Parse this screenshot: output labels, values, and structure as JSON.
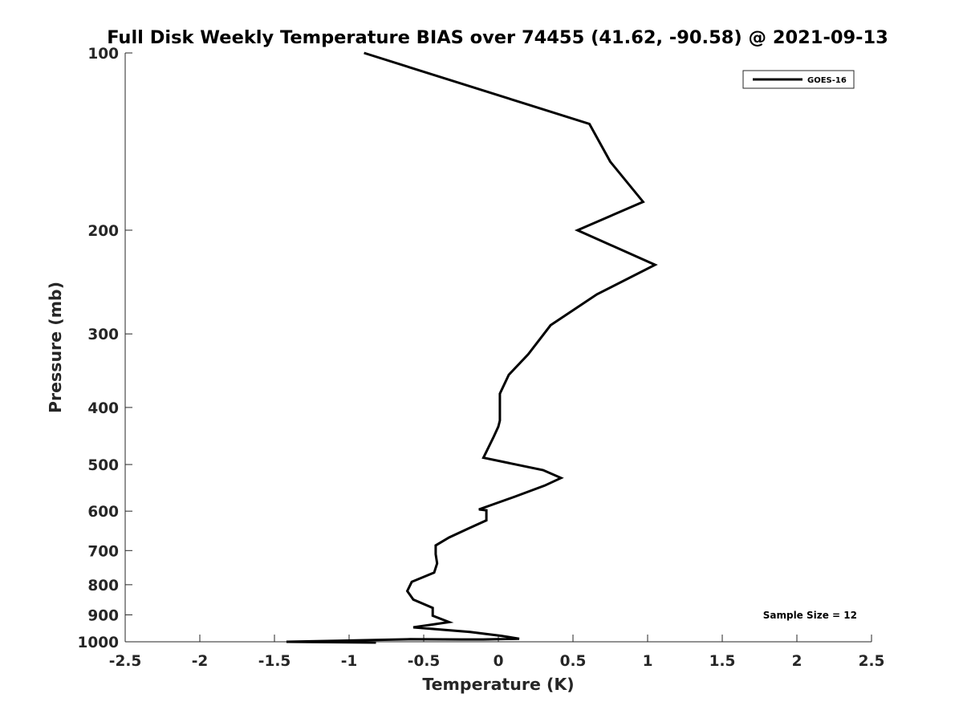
{
  "chart_data": {
    "type": "line",
    "title": "Full Disk Weekly Temperature BIAS over 74455 (41.62, -90.58) @ 2021-09-13",
    "xlabel": "Temperature (K)",
    "ylabel": "Pressure (mb)",
    "xlim": [
      -2.5,
      2.5
    ],
    "ylim": [
      100,
      1000
    ],
    "y_scale": "log",
    "y_reversed": true,
    "x_ticks": [
      "-2.5",
      "-2",
      "-1.5",
      "-1",
      "-0.5",
      "0",
      "0.5",
      "1",
      "1.5",
      "2",
      "2.5"
    ],
    "y_ticks": [
      "100",
      "200",
      "300",
      "400",
      "500",
      "600",
      "700",
      "800",
      "900",
      "1000"
    ],
    "grid": false,
    "legend_position": "top-right",
    "series": [
      {
        "name": "GOES-16",
        "color": "#000000",
        "x": [
          -0.9,
          0.61,
          0.75,
          0.97,
          0.53,
          1.05,
          0.66,
          0.35,
          0.2,
          0.07,
          0.01,
          0.01,
          0.01,
          0.0,
          -0.03,
          -0.1,
          0.3,
          0.42,
          0.31,
          0.11,
          -0.13,
          -0.08,
          -0.08,
          -0.2,
          -0.33,
          -0.42,
          -0.42,
          -0.41,
          -0.43,
          -0.58,
          -0.61,
          -0.57,
          -0.44,
          -0.44,
          -0.33,
          -0.57,
          -0.19,
          0.02,
          0.14,
          -0.1,
          -0.25,
          -0.59,
          -1.08,
          -1.42,
          -0.82
        ],
        "y": [
          100,
          132,
          153,
          179,
          200,
          229,
          257,
          290,
          325,
          352,
          379,
          401,
          421,
          431,
          448,
          487,
          511,
          527,
          543,
          567,
          596,
          598,
          622,
          642,
          665,
          686,
          710,
          736,
          763,
          791,
          820,
          848,
          876,
          903,
          926,
          945,
          962,
          977,
          988,
          991,
          991,
          990,
          996,
          1000,
          1003
        ]
      }
    ],
    "annotations": [
      "Sample Size = 12"
    ]
  }
}
